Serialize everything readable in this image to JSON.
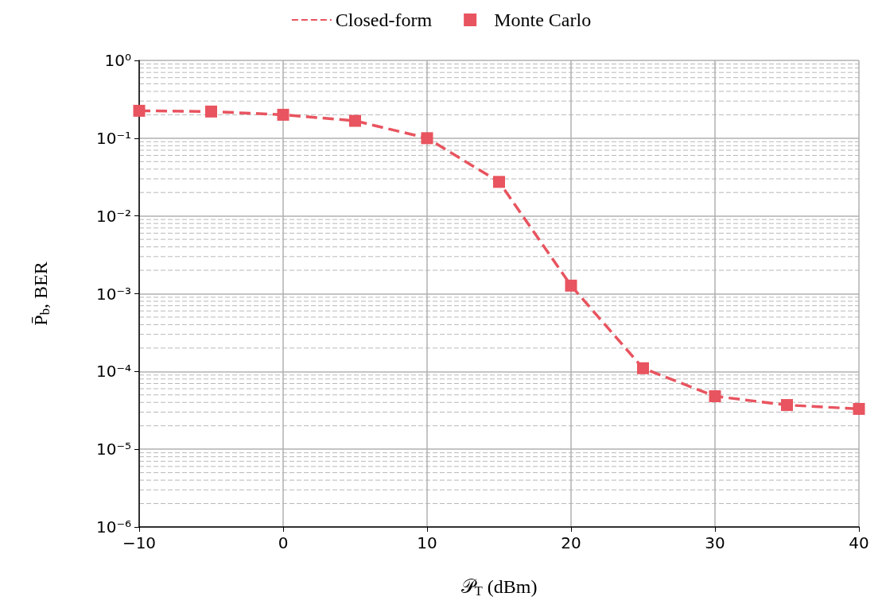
{
  "chart_data": {
    "type": "line",
    "xlabel": "𝒫$_{T}$ (dBm)",
    "ylabel": "P̄$_{b}$, BER",
    "x": [
      -10,
      -5,
      0,
      5,
      10,
      15,
      20,
      25,
      30,
      35,
      40
    ],
    "series": [
      {
        "name": "Closed-form",
        "color": "#e8545f",
        "line_style": "dashed",
        "marker": "none",
        "values": [
          0.225,
          0.22,
          0.2,
          0.167,
          0.1,
          0.0274,
          0.00127,
          0.00011,
          4.8e-05,
          3.7e-05,
          3.3e-05
        ]
      },
      {
        "name": "Monte Carlo",
        "type": "scatter",
        "color": "#e8545f",
        "marker": "square",
        "values": [
          0.225,
          0.22,
          0.2,
          0.167,
          0.1,
          0.0274,
          0.00127,
          0.00011,
          4.8e-05,
          3.7e-05,
          3.3e-05
        ]
      }
    ],
    "xlim": [
      -10,
      40
    ],
    "xticks": [
      {
        "value": -10,
        "label": "−10"
      },
      0,
      10,
      20,
      30,
      40
    ],
    "ylim": [
      1e-06,
      1
    ],
    "yticks": [
      {
        "value": 1e-06,
        "label": "10⁻⁶"
      },
      {
        "value": 1e-05,
        "label": "10⁻⁵"
      },
      {
        "value": 0.0001,
        "label": "10⁻⁴"
      },
      {
        "value": 0.001,
        "label": "10⁻³"
      },
      {
        "value": 0.01,
        "label": "10⁻²"
      },
      {
        "value": 0.1,
        "label": "10⁻¹"
      },
      {
        "value": 1,
        "label": "10⁰"
      }
    ],
    "log": "y",
    "grid": true,
    "legend": "top"
  }
}
